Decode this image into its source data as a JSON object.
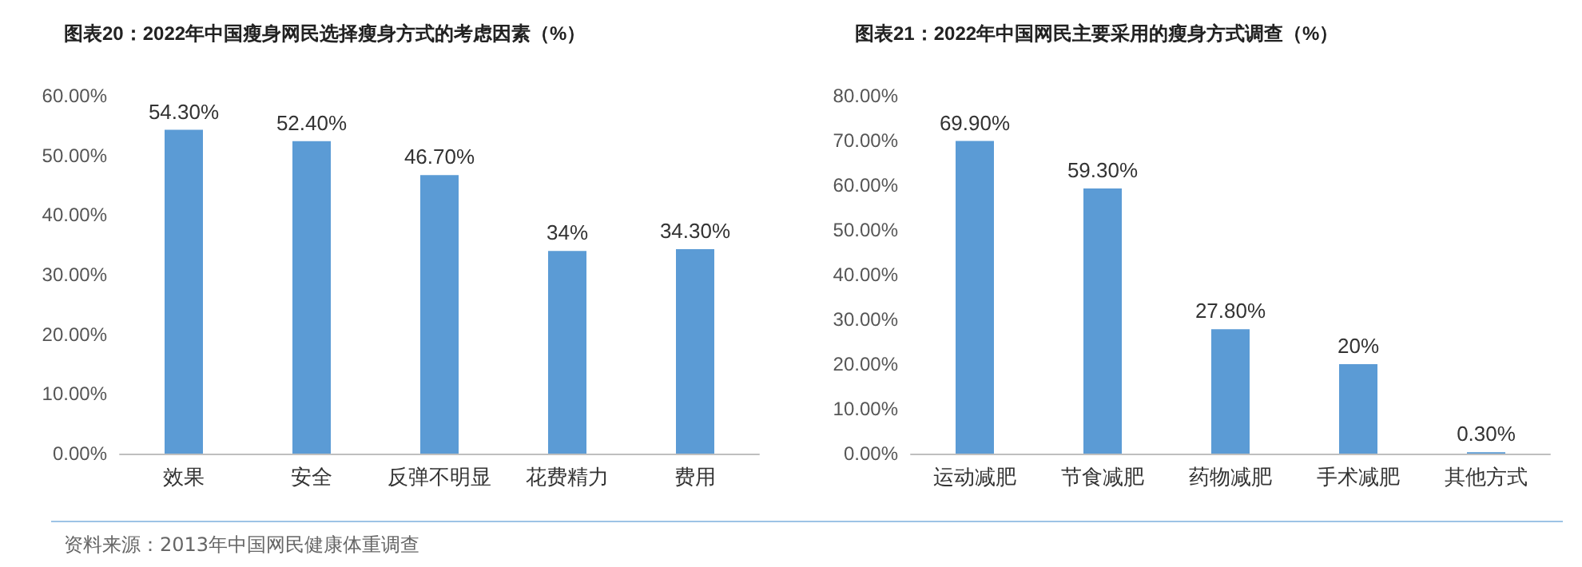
{
  "chart_data": [
    {
      "type": "bar",
      "title": "图表20：2022年中国瘦身网民选择瘦身方式的考虑因素（%）",
      "categories": [
        "效果",
        "安全",
        "反弹不明显",
        "花费精力",
        "费用"
      ],
      "values": [
        54.3,
        52.4,
        46.7,
        34,
        34.3
      ],
      "value_labels": [
        "54.30%",
        "52.40%",
        "46.70%",
        "34%",
        "34.30%"
      ],
      "color": "#5b9bd5",
      "ylim": [
        0,
        60
      ],
      "yticks": [
        {
          "value": 0,
          "label": "0.00%"
        },
        {
          "value": 10,
          "label": "10.00%"
        },
        {
          "value": 20,
          "label": "20.00%"
        },
        {
          "value": 30,
          "label": "30.00%"
        },
        {
          "value": 40,
          "label": "40.00%"
        },
        {
          "value": 50,
          "label": "50.00%"
        },
        {
          "value": 60,
          "label": "60.00%"
        }
      ],
      "grid": false,
      "annotations": [
        "资料来源：2013年中国网民健康体重调查"
      ]
    },
    {
      "type": "bar",
      "title": "图表21：2022年中国网民主要采用的瘦身方式调查（%）",
      "categories": [
        "运动减肥",
        "节食减肥",
        "药物减肥",
        "手术减肥",
        "其他方式"
      ],
      "values": [
        69.9,
        59.3,
        27.8,
        20,
        0.3
      ],
      "value_labels": [
        "69.90%",
        "59.30%",
        "27.80%",
        "20%",
        "0.30%"
      ],
      "color": "#5b9bd5",
      "ylim": [
        0,
        80
      ],
      "yticks": [
        {
          "value": 0,
          "label": "0.00%"
        },
        {
          "value": 10,
          "label": "10.00%"
        },
        {
          "value": 20,
          "label": "20.00%"
        },
        {
          "value": 30,
          "label": "30.00%"
        },
        {
          "value": 40,
          "label": "40.00%"
        },
        {
          "value": 50,
          "label": "50.00%"
        },
        {
          "value": 60,
          "label": "60.00%"
        },
        {
          "value": 70,
          "label": "70.00%"
        },
        {
          "value": 80,
          "label": "80.00%"
        }
      ],
      "grid": false
    }
  ]
}
